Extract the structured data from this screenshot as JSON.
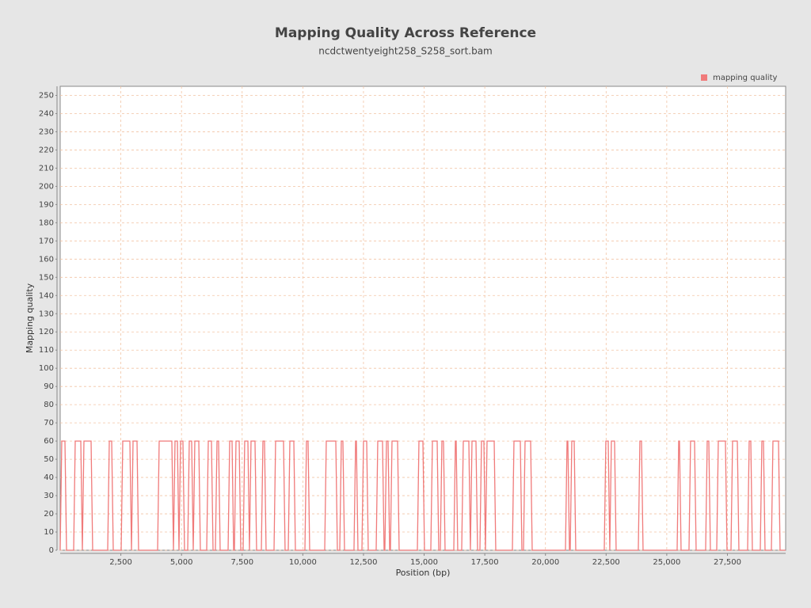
{
  "chart_data": {
    "type": "line",
    "title": "Mapping Quality Across Reference",
    "subtitle": "ncdctwentyeight258_S258_sort.bam",
    "x_label": "Position (bp)",
    "y_label": "Mapping quality",
    "xlim": [
      0,
      29900
    ],
    "ylim": [
      0,
      255
    ],
    "xticks": [
      {
        "value": 2500,
        "label": "2,500"
      },
      {
        "value": 5000,
        "label": "5,000"
      },
      {
        "value": 7500,
        "label": "7,500"
      },
      {
        "value": 10000,
        "label": "10,000"
      },
      {
        "value": 12500,
        "label": "12,500"
      },
      {
        "value": 15000,
        "label": "15,000"
      },
      {
        "value": 17500,
        "label": "17,500"
      },
      {
        "value": 20000,
        "label": "20,000"
      },
      {
        "value": 22500,
        "label": "22,500"
      },
      {
        "value": 25000,
        "label": "25,000"
      },
      {
        "value": 27500,
        "label": "27,500"
      }
    ],
    "yticks": [
      0,
      10,
      20,
      30,
      40,
      50,
      60,
      70,
      80,
      90,
      100,
      110,
      120,
      130,
      140,
      150,
      160,
      170,
      180,
      190,
      200,
      210,
      220,
      230,
      240,
      250
    ],
    "grid": true,
    "legend": "top-right",
    "x": [
      0,
      65,
      196,
      261,
      555,
      620,
      849,
      914,
      979,
      1273,
      1338,
      1958,
      2024,
      2122,
      2187,
      2513,
      2579,
      2872,
      2938,
      3003,
      3166,
      3231,
      4015,
      4080,
      4602,
      4668,
      4733,
      4831,
      4896,
      4961,
      5059,
      5124,
      5255,
      5320,
      5418,
      5484,
      5549,
      5712,
      5777,
      6038,
      6104,
      6234,
      6300,
      6397,
      6463,
      6528,
      6593,
      6920,
      6985,
      7083,
      7148,
      7181,
      7246,
      7377,
      7442,
      7540,
      7605,
      7736,
      7801,
      7866,
      8029,
      8095,
      8291,
      8356,
      8421,
      8486,
      8813,
      8878,
      9204,
      9269,
      9400,
      9466,
      9629,
      9694,
      10086,
      10151,
      10216,
      10282,
      10902,
      10967,
      11359,
      11424,
      11522,
      11587,
      11652,
      11718,
      12109,
      12175,
      12207,
      12273,
      12436,
      12501,
      12632,
      12697,
      13023,
      13089,
      13284,
      13350,
      13382,
      13448,
      13513,
      13578,
      13611,
      13676,
      13905,
      13970,
      14721,
      14786,
      14949,
      15014,
      15275,
      15341,
      15537,
      15602,
      15667,
      15733,
      15798,
      15863,
      16222,
      16288,
      16320,
      16385,
      16548,
      16614,
      16842,
      16907,
      16973,
      17136,
      17201,
      17299,
      17364,
      17462,
      17527,
      17593,
      17887,
      17952,
      18637,
      18703,
      18964,
      19029,
      19095,
      19160,
      19389,
      19454,
      20825,
      20890,
      20923,
      20988,
      21021,
      21086,
      21184,
      21249,
      22424,
      22489,
      22587,
      22652,
      22717,
      22848,
      22913,
      23827,
      23892,
      23958,
      24023,
      25427,
      25492,
      25524,
      25590,
      25916,
      25981,
      26145,
      26210,
      26602,
      26667,
      26733,
      26798,
      27059,
      27124,
      27418,
      27483,
      27647,
      27712,
      27908,
      27973,
      28332,
      28397,
      28463,
      28528,
      28854,
      28920,
      28985,
      29050,
      29311,
      29376,
      29605,
      29670,
      29898
    ],
    "series": [
      {
        "name": "mapping quality",
        "color": "#f07a7a",
        "values": [
          0,
          60,
          60,
          0,
          0,
          60,
          60,
          0,
          60,
          60,
          0,
          0,
          60,
          60,
          0,
          0,
          60,
          60,
          0,
          60,
          60,
          0,
          0,
          60,
          60,
          0,
          60,
          60,
          0,
          60,
          60,
          0,
          0,
          60,
          60,
          0,
          60,
          60,
          0,
          0,
          60,
          60,
          0,
          0,
          60,
          60,
          0,
          0,
          60,
          60,
          0,
          0,
          60,
          60,
          0,
          0,
          60,
          60,
          0,
          60,
          60,
          0,
          0,
          60,
          60,
          0,
          0,
          60,
          60,
          0,
          0,
          60,
          60,
          0,
          0,
          60,
          60,
          0,
          0,
          60,
          60,
          0,
          0,
          60,
          60,
          0,
          0,
          60,
          60,
          0,
          0,
          60,
          60,
          0,
          0,
          60,
          60,
          0,
          0,
          60,
          60,
          0,
          0,
          60,
          60,
          0,
          0,
          60,
          60,
          0,
          0,
          60,
          60,
          0,
          0,
          60,
          60,
          0,
          0,
          60,
          60,
          0,
          0,
          60,
          60,
          0,
          60,
          60,
          0,
          0,
          60,
          60,
          0,
          60,
          60,
          0,
          0,
          60,
          60,
          0,
          0,
          60,
          60,
          0,
          0,
          60,
          60,
          0,
          0,
          60,
          60,
          0,
          0,
          60,
          60,
          0,
          60,
          60,
          0,
          0,
          60,
          60,
          0,
          0,
          60,
          60,
          0,
          0,
          60,
          60,
          0,
          0,
          60,
          60,
          0,
          0,
          60,
          60,
          0,
          0,
          60,
          60,
          0,
          0,
          60,
          60,
          0,
          0,
          60,
          60,
          0,
          0,
          60,
          60,
          0,
          0
        ]
      }
    ]
  }
}
